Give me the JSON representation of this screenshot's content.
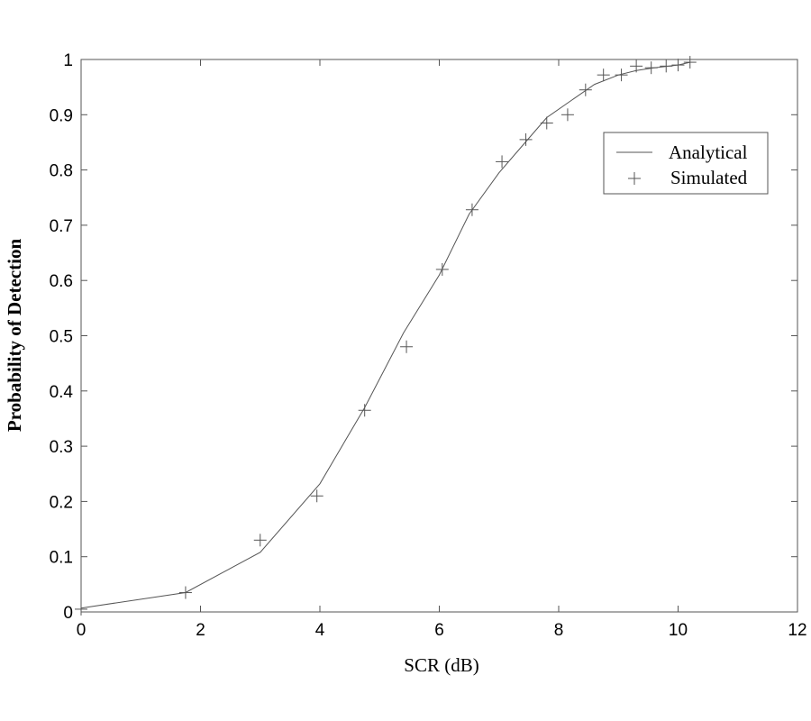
{
  "chart_data": {
    "type": "line",
    "xlabel": "SCR (dB)",
    "ylabel": "Probability of Detection",
    "xlim": [
      0,
      12
    ],
    "ylim": [
      0,
      1
    ],
    "xticks": [
      "0",
      "2",
      "4",
      "6",
      "8",
      "10",
      "12"
    ],
    "yticks": [
      "0",
      "0.1",
      "0.2",
      "0.3",
      "0.4",
      "0.5",
      "0.6",
      "0.7",
      "0.8",
      "0.9",
      "1"
    ],
    "grid": false,
    "legend_position": "top-right",
    "series": [
      {
        "name": "Analytical",
        "style": "line",
        "color": "#555555",
        "x": [
          0,
          1.75,
          3.0,
          4.0,
          4.75,
          5.4,
          6.0,
          6.5,
          7.0,
          7.4,
          7.8,
          8.2,
          8.6,
          9.0,
          9.3,
          9.6,
          10.0,
          10.2
        ],
        "y": [
          0.007,
          0.035,
          0.108,
          0.232,
          0.37,
          0.505,
          0.61,
          0.72,
          0.795,
          0.845,
          0.895,
          0.925,
          0.955,
          0.972,
          0.98,
          0.985,
          0.99,
          0.995
        ]
      },
      {
        "name": "Simulated",
        "style": "marker",
        "marker": "+",
        "color": "#555555",
        "x": [
          0.0,
          1.75,
          3.0,
          3.95,
          4.75,
          5.45,
          6.05,
          6.55,
          7.05,
          7.45,
          7.8,
          8.15,
          8.45,
          8.75,
          9.05,
          9.3,
          9.55,
          9.8,
          10.0,
          10.2
        ],
        "y": [
          0.005,
          0.035,
          0.13,
          0.21,
          0.365,
          0.48,
          0.62,
          0.728,
          0.815,
          0.855,
          0.885,
          0.9,
          0.945,
          0.972,
          0.972,
          0.988,
          0.985,
          0.988,
          0.99,
          0.995
        ]
      }
    ]
  }
}
